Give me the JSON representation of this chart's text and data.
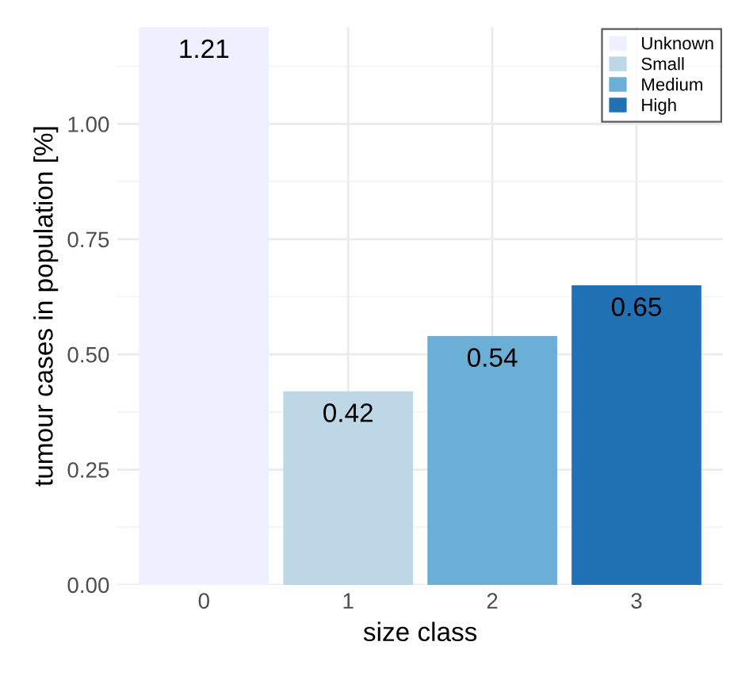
{
  "chart_data": {
    "type": "bar",
    "xlabel": "size class",
    "ylabel": "tumour cases in population [%]",
    "categories": [
      "0",
      "1",
      "2",
      "3"
    ],
    "series": [
      {
        "name": "Unknown",
        "color": "#eef0ff",
        "values": [
          1.21,
          null,
          null,
          null
        ]
      },
      {
        "name": "Small",
        "color": "#bdd7e7",
        "values": [
          null,
          0.42,
          null,
          null
        ]
      },
      {
        "name": "Medium",
        "color": "#6baed6",
        "values": [
          null,
          null,
          0.54,
          null
        ]
      },
      {
        "name": "High",
        "color": "#2171b5",
        "values": [
          null,
          null,
          null,
          0.65
        ]
      }
    ],
    "stacked": true,
    "ylim": [
      0,
      1.21
    ],
    "yticks": [
      "0.00",
      "0.25",
      "0.50",
      "0.75",
      "1.00"
    ],
    "grid": true,
    "legend": "top right",
    "data_labels": true
  }
}
